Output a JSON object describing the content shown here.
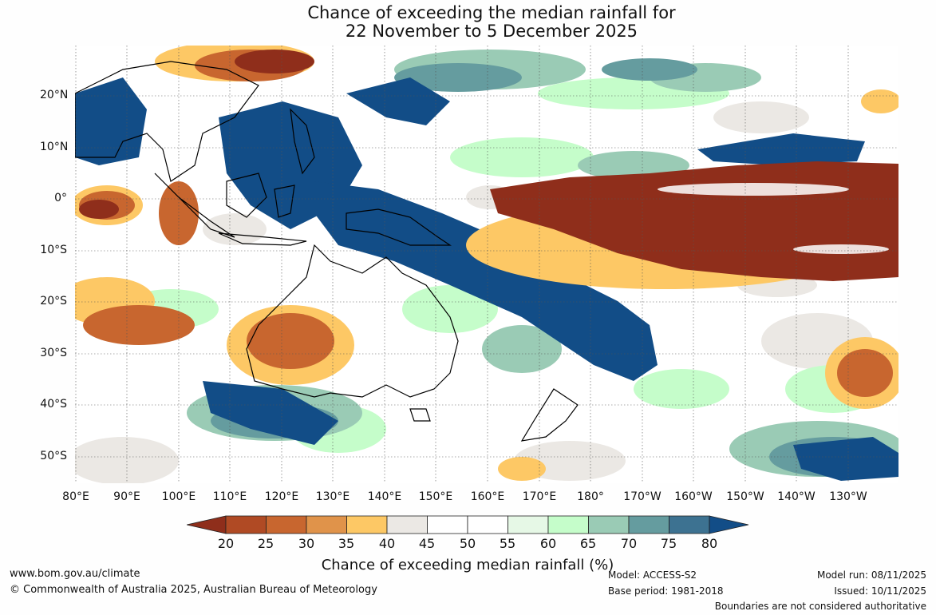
{
  "title": {
    "line1": "Chance of exceeding the median rainfall for",
    "line2": "22 November to 5 December 2025"
  },
  "map": {
    "region": "Australia, Indonesia and the western Pacific",
    "lat_labels": [
      "20°N",
      "10°N",
      "0°",
      "10°S",
      "20°S",
      "30°S",
      "40°S",
      "50°S"
    ],
    "lon_labels": [
      "80°E",
      "90°E",
      "100°E",
      "110°E",
      "120°E",
      "130°E",
      "140°E",
      "150°E",
      "160°E",
      "170°E",
      "180°",
      "170°W",
      "160°W",
      "150°W",
      "140°W",
      "130°W"
    ]
  },
  "colorbar": {
    "ticks": [
      "20",
      "25",
      "30",
      "35",
      "40",
      "45",
      "50",
      "55",
      "60",
      "65",
      "70",
      "75",
      "80"
    ],
    "colors": [
      "#8f2e1b",
      "#b04a24",
      "#c8662f",
      "#e0934a",
      "#fdc865",
      "#ebe8e4",
      "#ffffff",
      "#ffffff",
      "#e6f8e6",
      "#c5fdca",
      "#9acbb5",
      "#659c9f",
      "#3d7291",
      "#124d87"
    ],
    "label": "Chance of exceeding median rainfall (%)"
  },
  "footer": {
    "website": "www.bom.gov.au/climate",
    "copyright": "© Commonwealth of Australia 2025, Australian Bureau of Meteorology",
    "model": "Model: ACCESS-S2",
    "base_period": "Base period: 1981-2018",
    "model_run": "Model run: 08/11/2025",
    "issued": "Issued: 10/11/2025",
    "disclaimer": "Boundaries are not considered authoritative"
  }
}
